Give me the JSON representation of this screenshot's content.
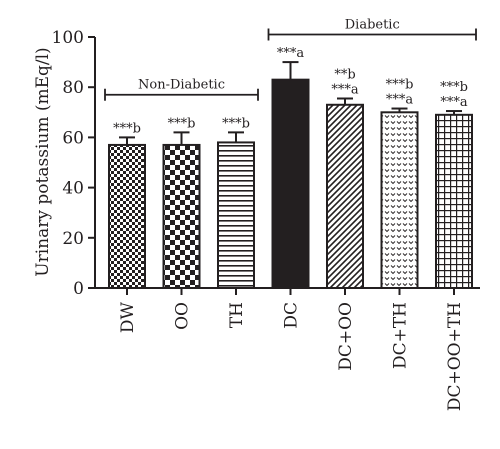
{
  "chart_data": {
    "type": "bar",
    "ylabel": "Urinary potassium (mEq/l)",
    "ylim": [
      0,
      100
    ],
    "yticks": [
      "0",
      "20",
      "40",
      "60",
      "80",
      "100"
    ],
    "categories": [
      "DW",
      "OO",
      "TH",
      "DC",
      "DC+OO",
      "DC+TH",
      "DC+OO+TH"
    ],
    "values": [
      57,
      57,
      58,
      83,
      73,
      70,
      69
    ],
    "errors": [
      3,
      5,
      4,
      7,
      2.5,
      1.5,
      1.5
    ],
    "patterns": [
      "checker-small",
      "checker-large",
      "horizontal-lines",
      "solid-black",
      "diagonal-lines",
      "dots",
      "grid"
    ],
    "annotations": [
      [
        "***b"
      ],
      [
        "***b"
      ],
      [
        "***b"
      ],
      [
        "***a"
      ],
      [
        "**b",
        "***a"
      ],
      [
        "***b",
        "***a"
      ],
      [
        "***b",
        "***a"
      ]
    ],
    "groups": [
      {
        "label": "Non-Diabetic",
        "from": 0,
        "to": 2,
        "y": 77
      },
      {
        "label": "Diabetic",
        "from": 3,
        "to": 6,
        "y": 101
      }
    ]
  }
}
